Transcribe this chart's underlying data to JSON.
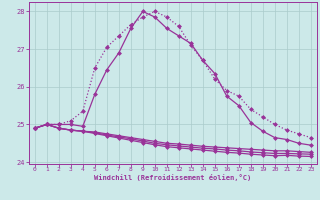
{
  "xlabel": "Windchill (Refroidissement éolien,°C)",
  "x": [
    0,
    1,
    2,
    3,
    4,
    5,
    6,
    7,
    8,
    9,
    10,
    11,
    12,
    13,
    14,
    15,
    16,
    17,
    18,
    19,
    20,
    21,
    22,
    23
  ],
  "line_main": [
    24.9,
    25.0,
    25.0,
    25.0,
    24.95,
    25.8,
    26.45,
    26.9,
    27.55,
    28.0,
    27.85,
    27.55,
    27.35,
    27.15,
    26.7,
    26.35,
    25.75,
    25.5,
    25.05,
    24.82,
    24.65,
    24.6,
    24.5,
    24.45
  ],
  "line_dotted": [
    24.9,
    25.0,
    25.0,
    25.1,
    25.35,
    26.5,
    27.05,
    27.35,
    27.65,
    27.85,
    28.0,
    27.85,
    27.6,
    27.1,
    26.7,
    26.2,
    25.9,
    25.75,
    25.4,
    25.2,
    25.0,
    24.85,
    24.75,
    24.65
  ],
  "line_flat1": [
    24.9,
    25.0,
    24.9,
    24.85,
    24.82,
    24.8,
    24.75,
    24.7,
    24.65,
    24.6,
    24.55,
    24.5,
    24.48,
    24.45,
    24.42,
    24.4,
    24.38,
    24.36,
    24.34,
    24.32,
    24.3,
    24.3,
    24.28,
    24.26
  ],
  "line_flat2": [
    24.9,
    25.0,
    24.9,
    24.85,
    24.82,
    24.78,
    24.72,
    24.67,
    24.62,
    24.56,
    24.5,
    24.46,
    24.43,
    24.4,
    24.37,
    24.35,
    24.32,
    24.3,
    24.27,
    24.25,
    24.23,
    24.23,
    24.22,
    24.21
  ],
  "line_flat3": [
    24.9,
    25.0,
    24.9,
    24.85,
    24.82,
    24.76,
    24.7,
    24.64,
    24.58,
    24.52,
    24.46,
    24.41,
    24.38,
    24.35,
    24.32,
    24.29,
    24.26,
    24.24,
    24.21,
    24.19,
    24.17,
    24.18,
    24.16,
    24.15
  ],
  "ylim": [
    23.95,
    28.25
  ],
  "yticks": [
    24,
    25,
    26,
    27,
    28
  ],
  "xticks": [
    0,
    1,
    2,
    3,
    4,
    5,
    6,
    7,
    8,
    9,
    10,
    11,
    12,
    13,
    14,
    15,
    16,
    17,
    18,
    19,
    20,
    21,
    22,
    23
  ],
  "bg_color": "#cce9e9",
  "line_color": "#993399",
  "grid_color": "#aacccc",
  "markersize": 2.5,
  "linewidth": 0.9
}
